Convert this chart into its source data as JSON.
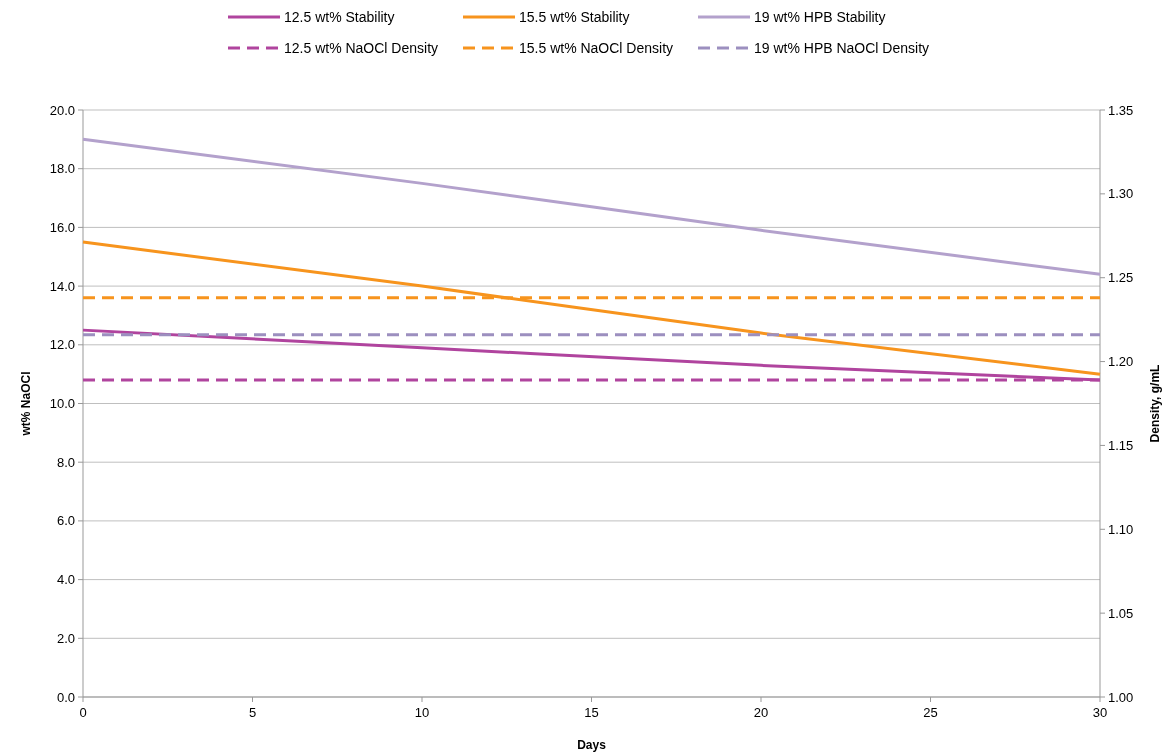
{
  "chart_data": {
    "type": "line",
    "xlabel": "Days",
    "ylabel": "wt% NaOCl",
    "y2label": "Density, g/mL",
    "xlim": [
      0,
      30
    ],
    "xticks": [
      0,
      5,
      10,
      15,
      20,
      25,
      30
    ],
    "ylim": [
      0,
      20
    ],
    "yticks": [
      {
        "value": 0,
        "label": "0.0"
      },
      {
        "value": 2,
        "label": "2.0"
      },
      {
        "value": 4,
        "label": "4.0"
      },
      {
        "value": 6,
        "label": "6.0"
      },
      {
        "value": 8,
        "label": "8.0"
      },
      {
        "value": 10,
        "label": "10.0"
      },
      {
        "value": 12,
        "label": "12.0"
      },
      {
        "value": 14,
        "label": "14.0"
      },
      {
        "value": 16,
        "label": "16.0"
      },
      {
        "value": 18,
        "label": "18.0"
      },
      {
        "value": 20,
        "label": "20.0"
      }
    ],
    "y2lim": [
      1,
      1.35
    ],
    "y2ticks": [
      {
        "value": 1,
        "label": "1.00"
      },
      1.05,
      {
        "value": 1.1,
        "label": "1.10"
      },
      1.15,
      {
        "value": 1.2,
        "label": "1.20"
      },
      1.25,
      {
        "value": 1.3,
        "label": "1.30"
      },
      1.35
    ],
    "grid": "y",
    "legend": "top",
    "series": [
      {
        "name": "12.5 wt% Stability",
        "color": "#b0449e",
        "x": [
          0,
          10,
          20,
          30
        ],
        "values": [
          12.5,
          11.9,
          11.3,
          10.8
        ]
      },
      {
        "name": "15.5 wt% Stability",
        "color": "#f7941d",
        "x": [
          0,
          10,
          20,
          30
        ],
        "values": [
          15.5,
          14.0,
          12.4,
          11.0
        ]
      },
      {
        "name": "19 wt% HPB Stability",
        "color": "#b3a1cc",
        "x": [
          0,
          10,
          20,
          30
        ],
        "values": [
          19.0,
          17.5,
          15.9,
          14.4
        ]
      },
      {
        "name": "12.5 wt% NaOCl Density",
        "color": "#b0449e",
        "axis": "y2",
        "line_style": "dashed",
        "x": [
          0,
          30
        ],
        "values": [
          1.189,
          1.189
        ]
      },
      {
        "name": "15.5 wt% NaOCl Density",
        "color": "#f7941d",
        "axis": "y2",
        "line_style": "dashed",
        "x": [
          0,
          30
        ],
        "values": [
          1.238,
          1.238
        ]
      },
      {
        "name": "19 wt% HPB NaOCl Density",
        "color": "#9c8fbf",
        "axis": "y2",
        "line_style": "dashed",
        "x": [
          0,
          30
        ],
        "values": [
          1.216,
          1.216
        ]
      }
    ]
  }
}
